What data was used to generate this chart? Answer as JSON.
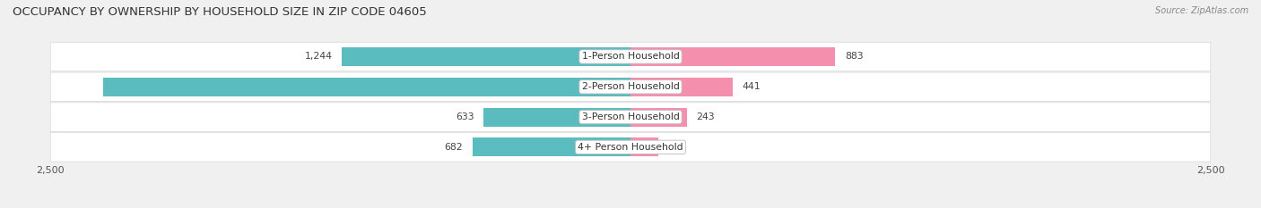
{
  "title": "OCCUPANCY BY OWNERSHIP BY HOUSEHOLD SIZE IN ZIP CODE 04605",
  "source": "Source: ZipAtlas.com",
  "categories": [
    "1-Person Household",
    "2-Person Household",
    "3-Person Household",
    "4+ Person Household"
  ],
  "owner_values": [
    1244,
    2273,
    633,
    682
  ],
  "renter_values": [
    883,
    441,
    243,
    118
  ],
  "owner_color": "#5bbcbf",
  "renter_color": "#f48fad",
  "bg_color": "#f0f0f0",
  "row_bg_color": "#ffffff",
  "row_sep_color": "#d8d8d8",
  "xlim": 2500,
  "title_fontsize": 9.5,
  "label_fontsize": 7.8,
  "value_fontsize": 7.8,
  "tick_fontsize": 8.0,
  "legend_fontsize": 8.0,
  "source_fontsize": 7.0,
  "bar_height": 0.62
}
